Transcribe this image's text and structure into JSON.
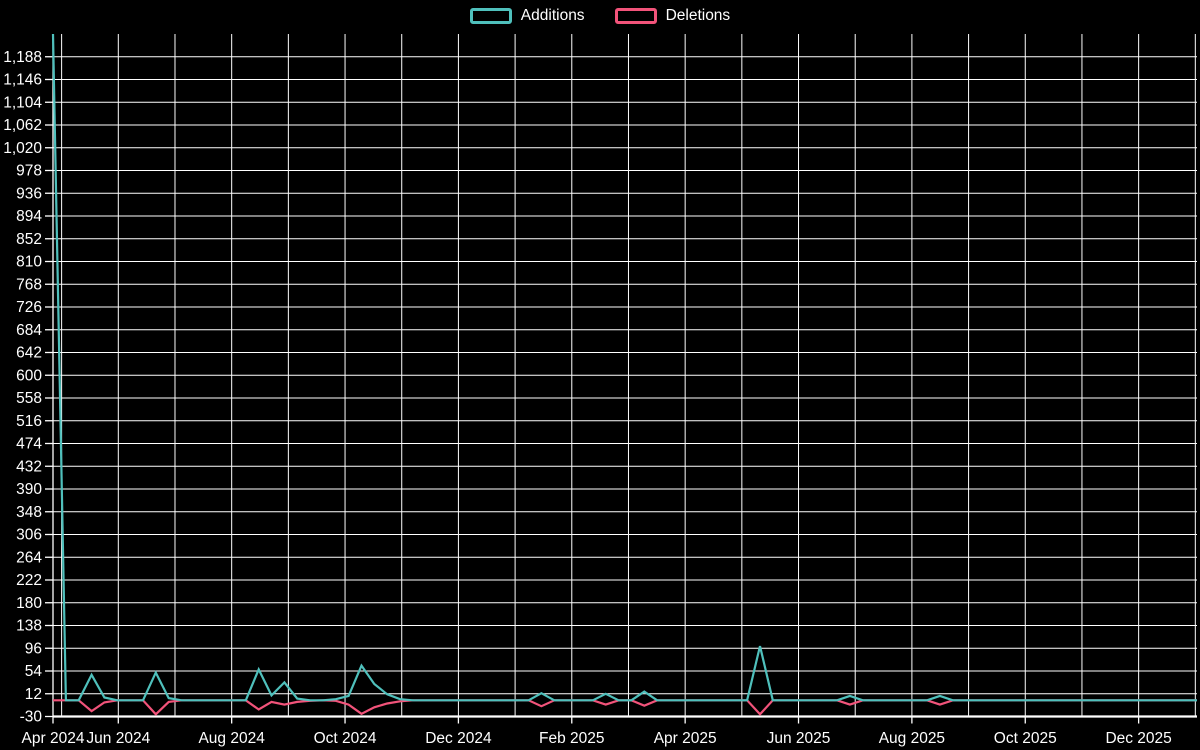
{
  "legend": {
    "position": "top-center",
    "items": [
      {
        "label": "Additions",
        "swatch": "teal-outlined-rect"
      },
      {
        "label": "Deletions",
        "swatch": "pink-outlined-rect"
      }
    ]
  },
  "chart_data": {
    "type": "line",
    "title": "",
    "background_color": "#000000",
    "grid_color": "#ffffff",
    "text_color": "#ffffff",
    "grid": "on",
    "legend_position": "top-center",
    "x_axis": {
      "tick_labels": [
        "Apr 2024",
        "Jun 2024",
        "Aug 2024",
        "Oct 2024",
        "Dec 2024",
        "Feb 2025",
        "Apr 2025",
        "Jun 2025",
        "Aug 2025",
        "Oct 2025",
        "Dec 2025"
      ],
      "label_interval": "2 months",
      "gridline_interval": "1 month",
      "points_interval": "1 week",
      "range_note": "data starts late Apr 2024 and runs to end Dec 2025"
    },
    "y_axis": {
      "min": -30,
      "max": 1230,
      "tick_step": 42,
      "tick_max": 1188,
      "tick_labels": [
        "1,188",
        "1,146",
        "1,104",
        "1,062",
        "1,020",
        "978",
        "936",
        "894",
        "852",
        "810",
        "768",
        "726",
        "684",
        "642",
        "600",
        "558",
        "516",
        "474",
        "432",
        "390",
        "348",
        "306",
        "264",
        "222",
        "180",
        "138",
        "96",
        "54",
        "12",
        "-30"
      ]
    },
    "series": [
      {
        "name": "Additions",
        "color": "#4fc0bc",
        "values": [
          1230,
          0,
          0,
          47,
          5,
          0,
          0,
          0,
          51,
          4,
          0,
          0,
          0,
          0,
          0,
          0,
          57,
          9,
          33,
          3,
          0,
          0,
          2,
          8,
          64,
          30,
          11,
          2,
          0,
          0,
          0,
          0,
          0,
          0,
          0,
          0,
          0,
          0,
          13,
          0,
          0,
          0,
          0,
          12,
          0,
          0,
          16,
          0,
          0,
          0,
          0,
          0,
          0,
          0,
          0,
          100,
          0,
          0,
          0,
          0,
          0,
          0,
          8,
          0,
          0,
          0,
          0,
          0,
          0,
          8,
          0,
          0,
          0,
          0,
          0,
          0,
          0,
          0,
          0,
          0,
          0,
          0,
          0,
          0,
          0,
          0,
          0,
          0,
          0,
          0
        ]
      },
      {
        "name": "Deletions",
        "color": "#f2537a",
        "values": [
          0,
          0,
          0,
          -20,
          -4,
          0,
          0,
          0,
          -26,
          -3,
          0,
          0,
          0,
          0,
          0,
          0,
          -17,
          -3,
          -8,
          -3,
          -1,
          0,
          -1,
          -8,
          -25,
          -13,
          -6,
          -2,
          0,
          0,
          0,
          0,
          0,
          0,
          0,
          0,
          0,
          0,
          -11,
          0,
          0,
          0,
          0,
          -8,
          0,
          0,
          -10,
          0,
          0,
          0,
          0,
          0,
          0,
          0,
          0,
          -26,
          0,
          0,
          0,
          0,
          0,
          0,
          -8,
          0,
          0,
          0,
          0,
          0,
          0,
          -8,
          0,
          0,
          0,
          0,
          0,
          0,
          0,
          0,
          0,
          0,
          0,
          0,
          0,
          0,
          0,
          0,
          0,
          0,
          0,
          0
        ]
      }
    ]
  }
}
